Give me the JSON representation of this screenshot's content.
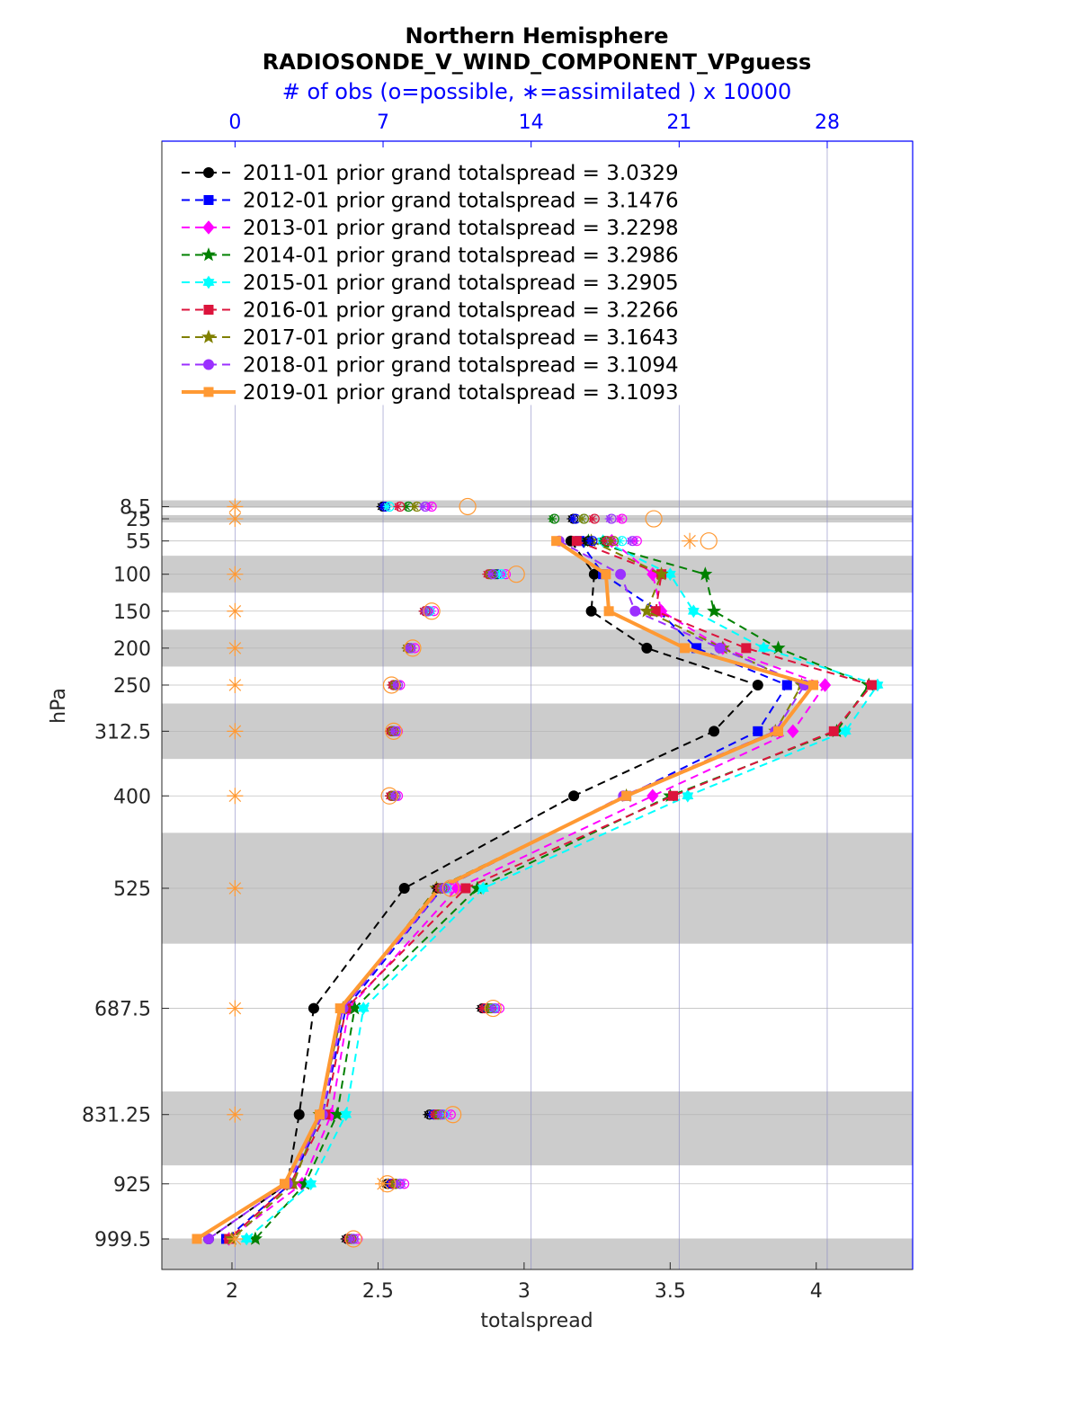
{
  "chart_data": {
    "type": "line",
    "title": "Northern Hemisphere",
    "subtitle": "RADIOSONDE_V_WIND_COMPONENT_VPguess",
    "top_axis_label": "# of obs (o=possible, ∗=assimilated ) x 10000",
    "xlabel": "totalspread",
    "ylabel": "hPa",
    "xlim": [
      1.76,
      4.33
    ],
    "top_xlim": [
      -3.46,
      32.04
    ],
    "x_ticks": [
      2,
      2.5,
      3,
      3.5,
      4
    ],
    "x_tick_labels": [
      "2",
      "2.5",
      "3",
      "3.5",
      "4"
    ],
    "top_ticks": [
      0,
      7,
      14,
      21,
      28
    ],
    "top_tick_labels": [
      "0",
      "7",
      "14",
      "21",
      "28"
    ],
    "levels": [
      8.5,
      25,
      55,
      100,
      150,
      200,
      250,
      312.5,
      400,
      525,
      687.5,
      831.25,
      925,
      999.5
    ],
    "level_labels": [
      "8.5",
      "25",
      "55",
      "100",
      "150",
      "200",
      "250",
      "312.5",
      "400",
      "525",
      "687.5",
      "831.25",
      "925",
      "999.5"
    ],
    "bands": [
      [
        0,
        10
      ],
      [
        20,
        30
      ],
      [
        75,
        125
      ],
      [
        175,
        225
      ],
      [
        275,
        350
      ],
      [
        450,
        600
      ],
      [
        800,
        900
      ],
      [
        1000,
        1050
      ]
    ],
    "grid": true,
    "legend_position": "top-left",
    "series": [
      {
        "name": "2011-01 prior grand totalspread = 3.0329",
        "color": "#000000",
        "marker": "circle",
        "dash": true,
        "width": 2,
        "levels": [
          55,
          100,
          150,
          200,
          250,
          312.5,
          400,
          525,
          687.5,
          831.25,
          925,
          999.5
        ],
        "values": [
          3.16,
          3.24,
          3.23,
          3.42,
          3.8,
          3.65,
          3.17,
          2.59,
          2.28,
          2.23,
          2.19,
          1.92
        ],
        "obs_levels": [
          8.5,
          25,
          55,
          100,
          150,
          200,
          250,
          312.5,
          400,
          525,
          687.5,
          831.25,
          925,
          999.5
        ],
        "obs_possible": [
          7.0,
          16.0,
          16.7,
          12.1,
          9.0,
          8.2,
          7.5,
          7.4,
          7.4,
          9.6,
          11.7,
          9.2,
          7.2,
          5.3
        ],
        "obs_assimilated": [
          6.9,
          15.9,
          16.6,
          12.0,
          8.9,
          8.1,
          7.4,
          7.3,
          7.3,
          9.5,
          11.6,
          9.1,
          7.1,
          5.2
        ]
      },
      {
        "name": "2012-01 prior grand totalspread = 3.1476",
        "color": "#0000ff",
        "marker": "square",
        "dash": true,
        "width": 2,
        "levels": [
          55,
          100,
          150,
          200,
          250,
          312.5,
          400,
          525,
          687.5,
          831.25,
          925,
          999.5
        ],
        "values": [
          3.19,
          3.27,
          3.46,
          3.59,
          3.9,
          3.8,
          3.35,
          2.72,
          2.39,
          2.31,
          2.2,
          1.98
        ],
        "obs_levels": [
          8.5,
          25,
          55,
          100,
          150,
          200,
          250,
          312.5,
          400,
          525,
          687.5,
          831.25,
          925,
          999.5
        ],
        "obs_possible": [
          7.1,
          16.1,
          16.9,
          12.4,
          9.1,
          8.3,
          7.6,
          7.5,
          7.5,
          9.8,
          11.9,
          9.4,
          7.4,
          5.4
        ],
        "obs_assimilated": [
          7.0,
          16.0,
          16.8,
          12.3,
          9.0,
          8.2,
          7.5,
          7.4,
          7.4,
          9.7,
          11.8,
          9.3,
          7.3,
          5.3
        ]
      },
      {
        "name": "2013-01 prior grand totalspread = 3.2298",
        "color": "#ff00ff",
        "marker": "diamond",
        "dash": true,
        "width": 2,
        "levels": [
          55,
          100,
          150,
          200,
          250,
          312.5,
          400,
          525,
          687.5,
          831.25,
          925,
          999.5
        ],
        "values": [
          3.3,
          3.44,
          3.47,
          3.68,
          4.03,
          3.92,
          3.44,
          2.77,
          2.4,
          2.34,
          2.24,
          1.99
        ],
        "obs_levels": [
          8.5,
          25,
          55,
          100,
          150,
          200,
          250,
          312.5,
          400,
          525,
          687.5,
          831.25,
          925,
          999.5
        ],
        "obs_possible": [
          9.3,
          18.3,
          19.0,
          12.8,
          9.4,
          8.5,
          7.8,
          7.7,
          7.7,
          10.2,
          12.5,
          10.2,
          8.0,
          5.8
        ],
        "obs_assimilated": [
          9.2,
          18.2,
          18.9,
          12.7,
          9.3,
          8.4,
          7.7,
          7.6,
          7.6,
          10.1,
          12.4,
          10.1,
          7.9,
          5.7
        ]
      },
      {
        "name": "2014-01 prior grand totalspread = 3.2986",
        "color": "#008000",
        "marker": "star",
        "dash": true,
        "width": 2,
        "levels": [
          55,
          100,
          150,
          200,
          250,
          312.5,
          400,
          525,
          687.5,
          831.25,
          925,
          999.5
        ],
        "values": [
          3.22,
          3.62,
          3.65,
          3.87,
          4.18,
          4.07,
          3.5,
          2.84,
          2.42,
          2.36,
          2.25,
          2.08
        ],
        "obs_levels": [
          8.5,
          25,
          55,
          100,
          150,
          200,
          250,
          312.5,
          400,
          525,
          687.5,
          831.25,
          925,
          999.5
        ],
        "obs_possible": [
          8.2,
          15.1,
          17.5,
          12.3,
          9.1,
          8.3,
          7.6,
          7.5,
          7.5,
          9.8,
          12.0,
          9.6,
          7.6,
          5.5
        ],
        "obs_assimilated": [
          8.1,
          15.0,
          17.4,
          12.2,
          9.0,
          8.2,
          7.5,
          7.4,
          7.4,
          9.7,
          11.9,
          9.5,
          7.5,
          5.4
        ]
      },
      {
        "name": "2015-01 prior grand totalspread = 3.2905",
        "color": "#00ffff",
        "marker": "hexagram",
        "dash": true,
        "width": 2,
        "levels": [
          55,
          100,
          150,
          200,
          250,
          312.5,
          400,
          525,
          687.5,
          831.25,
          925,
          999.5
        ],
        "values": [
          3.27,
          3.5,
          3.58,
          3.82,
          4.21,
          4.1,
          3.56,
          2.86,
          2.45,
          2.39,
          2.27,
          2.05
        ],
        "obs_levels": [
          8.5,
          25,
          55,
          100,
          150,
          200,
          250,
          312.5,
          400,
          525,
          687.5,
          831.25,
          925,
          999.5
        ],
        "obs_possible": [
          7.3,
          16.5,
          18.3,
          12.6,
          9.2,
          8.3,
          7.7,
          7.6,
          7.6,
          10.0,
          12.2,
          9.9,
          7.8,
          5.6
        ],
        "obs_assimilated": [
          7.2,
          16.4,
          18.2,
          12.5,
          9.1,
          8.2,
          7.6,
          7.5,
          7.5,
          9.9,
          12.1,
          9.8,
          7.7,
          5.5
        ]
      },
      {
        "name": "2016-01 prior grand totalspread = 3.2266",
        "color": "#dc143c",
        "marker": "square",
        "dash": true,
        "width": 2,
        "levels": [
          55,
          100,
          150,
          200,
          250,
          312.5,
          400,
          525,
          687.5,
          831.25,
          925,
          999.5
        ],
        "values": [
          3.18,
          3.47,
          3.45,
          3.76,
          4.19,
          4.06,
          3.51,
          2.8,
          2.39,
          2.32,
          2.2,
          1.99
        ],
        "obs_levels": [
          8.5,
          25,
          55,
          100,
          150,
          200,
          250,
          312.5,
          400,
          525,
          687.5,
          831.25,
          925,
          999.5
        ],
        "obs_possible": [
          7.8,
          17.0,
          17.6,
          12.0,
          9.0,
          8.2,
          7.5,
          7.4,
          7.4,
          9.7,
          11.8,
          9.5,
          7.5,
          5.4
        ],
        "obs_assimilated": [
          7.7,
          16.9,
          17.5,
          11.9,
          8.9,
          8.1,
          7.4,
          7.3,
          7.3,
          9.6,
          11.7,
          9.4,
          7.4,
          5.3
        ]
      },
      {
        "name": "2017-01 prior grand totalspread = 3.1643",
        "color": "#808000",
        "marker": "star",
        "dash": true,
        "width": 2,
        "levels": [
          55,
          100,
          150,
          200,
          250,
          312.5,
          400,
          525,
          687.5,
          831.25,
          925,
          999.5
        ],
        "values": [
          3.23,
          3.47,
          3.42,
          3.68,
          3.95,
          3.86,
          3.35,
          2.7,
          2.38,
          2.3,
          2.21,
          2.0
        ],
        "obs_levels": [
          8.5,
          25,
          55,
          100,
          150,
          200,
          250,
          312.5,
          400,
          525,
          687.5,
          831.25,
          925,
          999.5
        ],
        "obs_possible": [
          8.6,
          16.5,
          17.9,
          12.1,
          9.1,
          8.2,
          7.6,
          7.5,
          7.5,
          9.8,
          12.1,
          9.7,
          7.6,
          5.5
        ],
        "obs_assimilated": [
          8.5,
          16.4,
          17.8,
          12.0,
          9.0,
          8.1,
          7.5,
          7.4,
          7.4,
          9.7,
          12.0,
          9.6,
          7.5,
          5.4
        ]
      },
      {
        "name": "2018-01 prior grand totalspread = 3.1094",
        "color": "#9b30ff",
        "marker": "circle",
        "dash": true,
        "width": 2,
        "levels": [
          55,
          100,
          150,
          200,
          250,
          312.5,
          400,
          525,
          687.5,
          831.25,
          925,
          999.5
        ],
        "values": [
          3.12,
          3.33,
          3.38,
          3.67,
          3.96,
          3.86,
          3.34,
          2.72,
          2.38,
          2.31,
          2.19,
          1.92
        ],
        "obs_levels": [
          8.5,
          25,
          55,
          100,
          150,
          200,
          250,
          312.5,
          400,
          525,
          687.5,
          831.25,
          925,
          999.5
        ],
        "obs_possible": [
          9.0,
          17.8,
          18.8,
          12.2,
          9.1,
          8.3,
          7.7,
          7.6,
          7.6,
          9.9,
          12.3,
          9.8,
          7.8,
          5.6
        ],
        "obs_assimilated": [
          8.9,
          17.7,
          18.7,
          12.1,
          9.0,
          8.2,
          7.6,
          7.5,
          7.5,
          9.8,
          12.2,
          9.7,
          7.7,
          5.5
        ]
      },
      {
        "name": "2019-01 prior grand totalspread = 3.1093",
        "color": "#ff9933",
        "marker": "square",
        "dash": false,
        "width": 4,
        "levels": [
          55,
          100,
          150,
          200,
          250,
          312.5,
          400,
          525,
          687.5,
          831.25,
          925,
          999.5
        ],
        "values": [
          3.11,
          3.28,
          3.29,
          3.55,
          3.99,
          3.87,
          3.35,
          2.71,
          2.37,
          2.3,
          2.18,
          1.88
        ],
        "obs_levels": [
          8.5,
          25,
          55,
          100,
          150,
          200,
          250,
          312.5,
          400,
          525,
          687.5,
          831.25,
          925,
          999.5
        ],
        "obs_possible": [
          11.0,
          19.8,
          22.4,
          13.3,
          9.3,
          8.4,
          7.4,
          7.5,
          7.3,
          10.2,
          12.2,
          10.3,
          7.2,
          5.6
        ],
        "obs_assimilated": [
          0.0,
          0.0,
          21.5,
          0.0,
          0.0,
          0.0,
          0.0,
          0.0,
          0.0,
          0.0,
          0.0,
          0.0,
          7.0,
          0.0
        ]
      }
    ]
  }
}
